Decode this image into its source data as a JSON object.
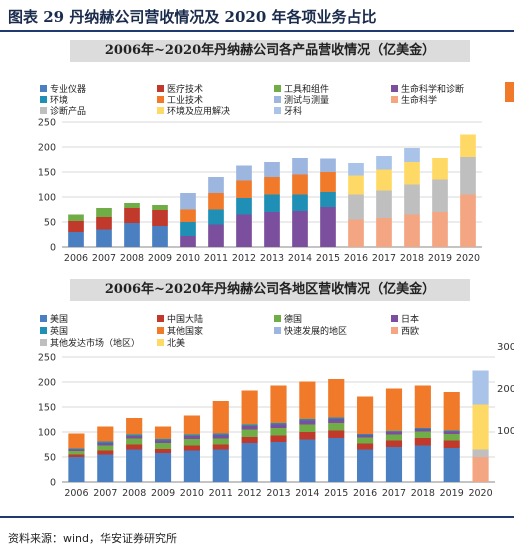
{
  "figure_title": "图表 29 丹纳赫公司营收情况及 2020 年各项业务占比",
  "source": "资料来源：wind，华安证券研究所",
  "chart_data": [
    {
      "type": "bar",
      "stacked": true,
      "title": "2006年~2020年丹纳赫公司各产品营收情况（亿美金）",
      "categories": [
        "2006",
        "2007",
        "2008",
        "2009",
        "2010",
        "2011",
        "2012",
        "2013",
        "2014",
        "2015",
        "2016",
        "2017",
        "2018",
        "2019",
        "2020"
      ],
      "ylim": [
        0,
        250
      ],
      "yticks": [
        "0",
        "50",
        "100",
        "150",
        "200",
        "250"
      ],
      "grid": true,
      "legend_position": "top",
      "series": [
        {
          "name": "专业仪器",
          "color": "#4a7fc1",
          "values": [
            30,
            35,
            48,
            42,
            0,
            0,
            0,
            0,
            0,
            0,
            0,
            0,
            0,
            0,
            0
          ]
        },
        {
          "name": "医疗技术",
          "color": "#c0392b",
          "values": [
            22,
            25,
            30,
            32,
            0,
            0,
            0,
            0,
            0,
            0,
            0,
            0,
            0,
            0,
            0
          ]
        },
        {
          "name": "工具和组件",
          "color": "#70ad47",
          "values": [
            13,
            18,
            10,
            10,
            0,
            0,
            0,
            0,
            0,
            0,
            0,
            0,
            0,
            0,
            0
          ]
        },
        {
          "name": "生命科学和诊断",
          "color": "#7b4f9d",
          "values": [
            0,
            0,
            0,
            0,
            22,
            45,
            65,
            70,
            72,
            80,
            0,
            0,
            0,
            0,
            0
          ]
        },
        {
          "name": "环境",
          "color": "#1f8fb5",
          "values": [
            0,
            0,
            0,
            0,
            28,
            30,
            33,
            35,
            33,
            30,
            0,
            0,
            0,
            0,
            0
          ]
        },
        {
          "name": "工业技术",
          "color": "#f07a2a",
          "values": [
            0,
            0,
            0,
            0,
            25,
            33,
            35,
            35,
            40,
            40,
            0,
            0,
            0,
            0,
            0
          ]
        },
        {
          "name": "测试与测量",
          "color": "#9cb6df",
          "values": [
            0,
            0,
            0,
            0,
            33,
            32,
            30,
            30,
            33,
            27,
            0,
            0,
            0,
            0,
            0
          ]
        },
        {
          "name": "生命科学",
          "color": "#f4a582",
          "values": [
            0,
            0,
            0,
            0,
            0,
            0,
            0,
            0,
            0,
            0,
            55,
            58,
            65,
            70,
            105
          ]
        },
        {
          "name": "诊断产品",
          "color": "#bfbfbf",
          "values": [
            0,
            0,
            0,
            0,
            0,
            0,
            0,
            0,
            0,
            0,
            50,
            55,
            60,
            65,
            75
          ]
        },
        {
          "name": "环境及应用解决",
          "color": "#ffd966",
          "values": [
            0,
            0,
            0,
            0,
            0,
            0,
            0,
            0,
            0,
            0,
            38,
            42,
            45,
            43,
            45
          ]
        },
        {
          "name": "牙科",
          "color": "#a9c4e8",
          "values": [
            0,
            0,
            0,
            0,
            0,
            0,
            0,
            0,
            0,
            0,
            25,
            27,
            28,
            0,
            0
          ]
        }
      ]
    },
    {
      "type": "bar",
      "stacked": true,
      "title": "2006年~2020年丹纳赫公司各地区营收情况（亿美金）",
      "categories": [
        "2006",
        "2007",
        "2008",
        "2009",
        "2010",
        "2011",
        "2012",
        "2013",
        "2014",
        "2015",
        "2016",
        "2017",
        "2018",
        "2019",
        "2020"
      ],
      "ylim": [
        0,
        250
      ],
      "yticks": [
        "0",
        "50",
        "100",
        "150",
        "200",
        "250"
      ],
      "grid": true,
      "legend_position": "top",
      "right_axis_ticks": [
        "100",
        "200",
        "300"
      ],
      "series": [
        {
          "name": "美国",
          "color": "#4a7fc1",
          "values": [
            50,
            55,
            65,
            58,
            63,
            65,
            78,
            80,
            85,
            88,
            65,
            70,
            73,
            68,
            0
          ]
        },
        {
          "name": "中国大陆",
          "color": "#c0392b",
          "values": [
            5,
            8,
            10,
            8,
            10,
            10,
            12,
            13,
            15,
            15,
            12,
            13,
            15,
            15,
            0
          ]
        },
        {
          "name": "德国",
          "color": "#70ad47",
          "values": [
            7,
            10,
            12,
            12,
            13,
            12,
            15,
            15,
            15,
            15,
            12,
            12,
            13,
            13,
            0
          ]
        },
        {
          "name": "日本",
          "color": "#7b4f9d",
          "values": [
            3,
            5,
            5,
            5,
            6,
            7,
            7,
            7,
            8,
            8,
            5,
            5,
            5,
            5,
            0
          ]
        },
        {
          "name": "英国",
          "color": "#1f8fb5",
          "values": [
            2,
            3,
            3,
            3,
            3,
            3,
            3,
            3,
            3,
            3,
            2,
            2,
            2,
            2,
            0
          ]
        },
        {
          "name": "其他国家",
          "color": "#f07a2a",
          "values": [
            30,
            30,
            33,
            25,
            38,
            65,
            68,
            75,
            75,
            77,
            75,
            85,
            85,
            77,
            0
          ]
        },
        {
          "name": "快速发展的地区",
          "color": "#9cb6df",
          "values": [
            0,
            0,
            0,
            0,
            0,
            0,
            0,
            0,
            0,
            0,
            0,
            0,
            0,
            0,
            0
          ]
        },
        {
          "name": "西欧",
          "color": "#f4a582",
          "values": [
            0,
            0,
            0,
            0,
            0,
            0,
            0,
            0,
            0,
            0,
            0,
            0,
            0,
            0,
            50
          ]
        },
        {
          "name": "其他发达市场（地区）",
          "color": "#bfbfbf",
          "values": [
            0,
            0,
            0,
            0,
            0,
            0,
            0,
            0,
            0,
            0,
            0,
            0,
            0,
            0,
            15
          ]
        },
        {
          "name": "北美",
          "color": "#ffd966",
          "values": [
            0,
            0,
            0,
            0,
            0,
            0,
            0,
            0,
            0,
            0,
            0,
            0,
            0,
            0,
            90
          ]
        },
        {
          "name": "",
          "color": "#a9c4e8",
          "values": [
            0,
            0,
            0,
            0,
            0,
            0,
            0,
            0,
            0,
            0,
            0,
            0,
            0,
            0,
            68
          ]
        }
      ]
    }
  ]
}
